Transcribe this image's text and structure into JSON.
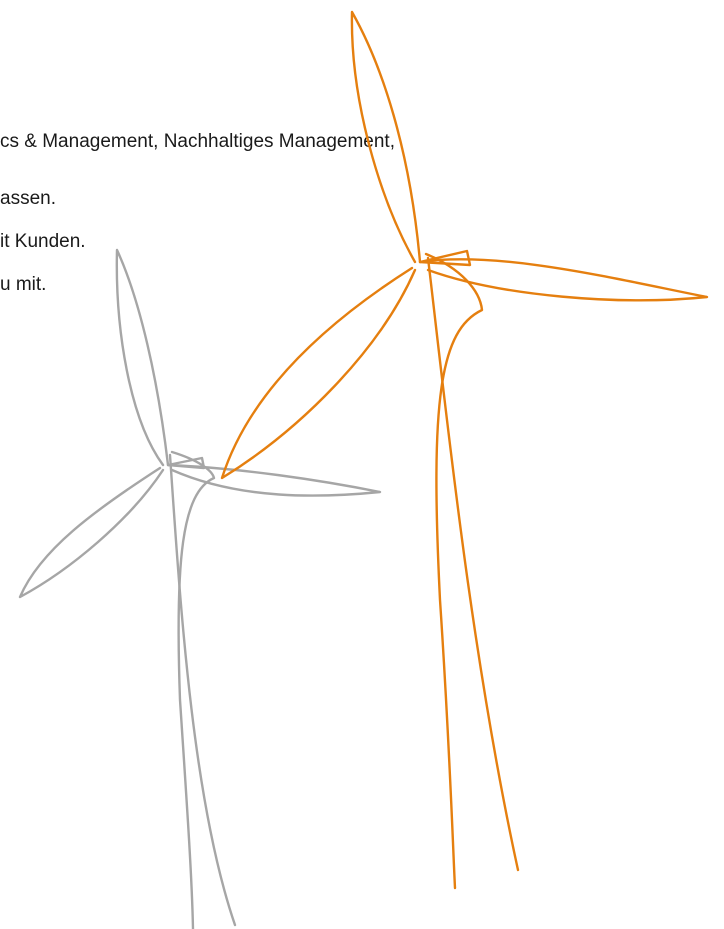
{
  "text": {
    "lines": [
      "cs & Management, Nachhaltiges Management,",
      "assen.",
      "it Kunden.",
      "u mit."
    ]
  }
}
